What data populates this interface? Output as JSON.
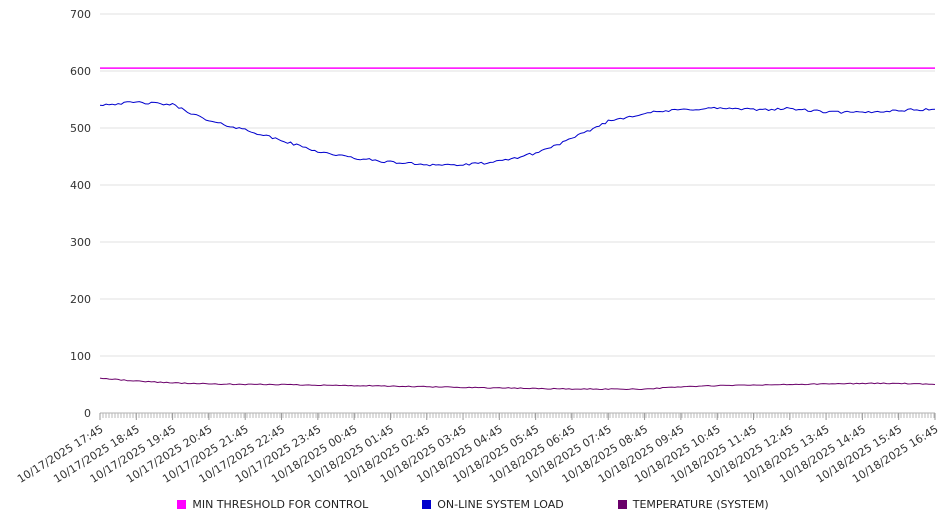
{
  "chart_data": {
    "type": "line",
    "title": "",
    "xlabel": "",
    "ylabel": "",
    "ylim": [
      0,
      700
    ],
    "y_ticks": [
      0,
      100,
      200,
      300,
      400,
      500,
      600,
      700
    ],
    "grid": "horizontal",
    "legend_position": "bottom",
    "x_labels": [
      "10/17/2025 17:45",
      "10/17/2025 18:45",
      "10/17/2025 19:45",
      "10/17/2025 20:45",
      "10/17/2025 21:45",
      "10/17/2025 22:45",
      "10/17/2025 23:45",
      "10/18/2025 00:45",
      "10/18/2025 01:45",
      "10/18/2025 02:45",
      "10/18/2025 03:45",
      "10/18/2025 04:45",
      "10/18/2025 05:45",
      "10/18/2025 06:45",
      "10/18/2025 07:45",
      "10/18/2025 08:45",
      "10/18/2025 09:45",
      "10/18/2025 10:45",
      "10/18/2025 11:45",
      "10/18/2025 12:45",
      "10/18/2025 13:45",
      "10/18/2025 14:45",
      "10/18/2025 15:45",
      "10/18/2025 16:45"
    ],
    "series": [
      {
        "name": "MIN THRESHOLD FOR CONTROL",
        "color": "#ff00ff",
        "jitter": 0,
        "stroke_width": 1.5,
        "values": [
          605,
          605,
          605,
          605,
          605,
          605,
          605,
          605,
          605,
          605,
          605,
          605,
          605,
          605,
          605,
          605,
          605,
          605,
          605,
          605,
          605,
          605,
          605,
          605
        ]
      },
      {
        "name": "ON-LINE SYSTEM LOAD",
        "color": "#0000cd",
        "jitter": 2.2,
        "stroke_width": 1,
        "values": [
          541,
          545,
          541,
          512,
          497,
          478,
          459,
          447,
          440,
          436,
          435,
          441,
          456,
          481,
          512,
          526,
          532,
          535,
          532,
          534,
          528,
          527,
          531,
          533
        ]
      },
      {
        "name": "TEMPERATURE (SYSTEM)",
        "color": "#6a006a",
        "jitter": 0.8,
        "stroke_width": 1,
        "values": [
          61,
          56,
          53,
          51,
          50,
          50,
          49,
          48,
          47,
          46,
          45,
          44,
          43,
          42,
          42,
          42,
          46,
          48,
          49,
          50,
          51,
          52,
          52,
          50
        ]
      }
    ]
  }
}
